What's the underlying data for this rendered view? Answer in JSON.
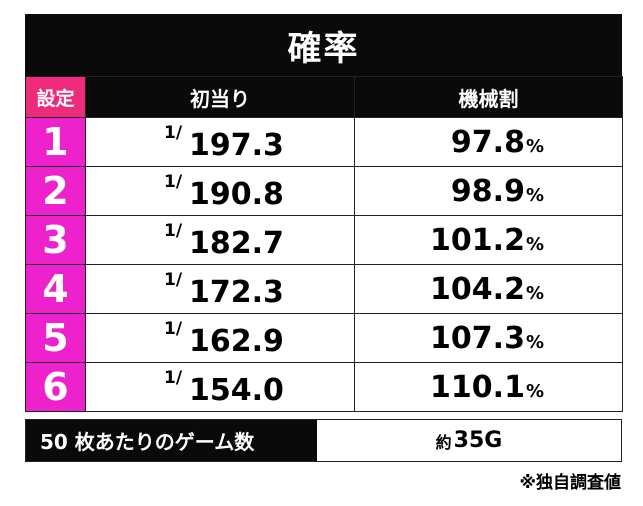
{
  "title": "確率",
  "headers": {
    "setting": "設定",
    "probability": "初当り",
    "payout": "機械割"
  },
  "rows": [
    {
      "setting": "1",
      "prob_numerator": "1/",
      "prob_denominator": "197.3",
      "payout": "97.8",
      "unit": "%"
    },
    {
      "setting": "2",
      "prob_numerator": "1/",
      "prob_denominator": "190.8",
      "payout": "98.9",
      "unit": "%"
    },
    {
      "setting": "3",
      "prob_numerator": "1/",
      "prob_denominator": "182.7",
      "payout": "101.2",
      "unit": "%"
    },
    {
      "setting": "4",
      "prob_numerator": "1/",
      "prob_denominator": "172.3",
      "payout": "104.2",
      "unit": "%"
    },
    {
      "setting": "5",
      "prob_numerator": "1/",
      "prob_denominator": "162.9",
      "payout": "107.3",
      "unit": "%"
    },
    {
      "setting": "6",
      "prob_numerator": "1/",
      "prob_denominator": "154.0",
      "payout": "110.1",
      "unit": "%"
    }
  ],
  "footer": {
    "label": "50 枚あたりのゲーム数",
    "value_prefix": "約",
    "value": "35G"
  },
  "note": "※独自調査値",
  "colors": {
    "header_bg": "#0a0a0a",
    "setting_header_bg": "#ee2a7b",
    "setting_cell_bg": "#ee22cc"
  }
}
